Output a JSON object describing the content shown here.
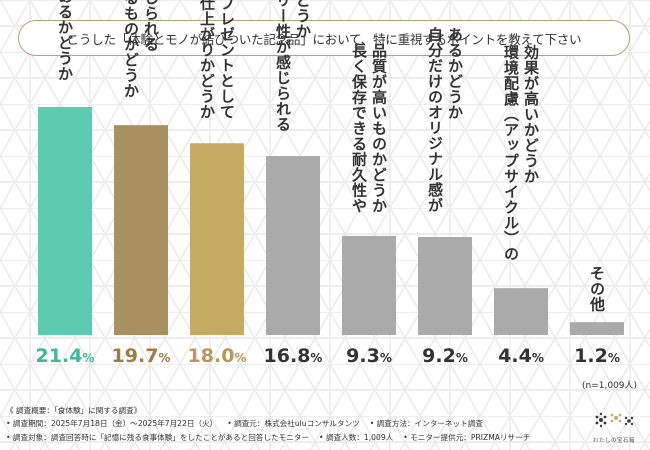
{
  "title": "こうした「体験とモノが結びついた記念品」において、特に重視するポイントを教えて下さい",
  "chart_data": {
    "type": "bar",
    "unit": "%",
    "categories": [
      "価格の妥当性があるかどうか",
      "デザイン性のあるものかどうか / 職人の技術が感じられる",
      "喜ばれる仕上がりかどうか / 贈り物やプレゼントとして",
      "ストーリー性が感じられるものかどうか",
      "品質が高いものかどうか / 長く保存できる耐久性や",
      "自分だけのオリジナル感があるかどうか",
      "効果が高いかどうか / 環境配慮（アップサイクル）の",
      "その他"
    ],
    "labels": [
      [
        "価格の妥当性があるかどうか"
      ],
      [
        "デザイン性のあるものかどうか",
        "職人の技術が感じられる"
      ],
      [
        "喜ばれる仕上がりかどうか",
        "贈り物やプレゼントとして"
      ],
      [
        "ストーリー性が感じられる",
        "ものかどうか"
      ],
      [
        "長く保存できる耐久性や",
        "品質が高いものかどうか"
      ],
      [
        "自分だけのオリジナル感が",
        "あるかどうか"
      ],
      [
        "環境配慮（アップサイクル）の",
        "効果が高いかどうか"
      ],
      [
        "その他"
      ]
    ],
    "values": [
      21.4,
      19.7,
      18.0,
      16.8,
      9.3,
      9.2,
      4.4,
      1.2
    ],
    "colors": [
      "#5ccbb0",
      "#a89060",
      "#c6aa62",
      "#aaaaaa",
      "#aaaaaa",
      "#aaaaaa",
      "#aaaaaa",
      "#aaaaaa"
    ],
    "value_colors": [
      "#3fb89a",
      "#9a7e48",
      "#b8975a",
      "#333333",
      "#333333",
      "#333333",
      "#333333",
      "#333333"
    ],
    "ylim": [
      0,
      23
    ]
  },
  "sample_note": "(n=1,009人)",
  "footer": {
    "overview": "《 調査概要：「食体験」に関する調査》",
    "period": "• 調査期間：2025年7月18日（金）〜2025年7月22日（火）",
    "source": "• 調査元：株式会社uluコンサルタンツ",
    "method": "• 調査方法：インターネット調査",
    "target": "• 調査対象：調査回答時に「記憶に残る食事体験」をしたことがあると回答したモニター",
    "count": "• 調査人数：1,009人",
    "provider": "• モニター提供元：PRIZMAリサーチ"
  },
  "logo_text": "わたしの宝石箱",
  "colors": {
    "title_border": "#b8a27a",
    "pattern": "#e7e7e7"
  }
}
